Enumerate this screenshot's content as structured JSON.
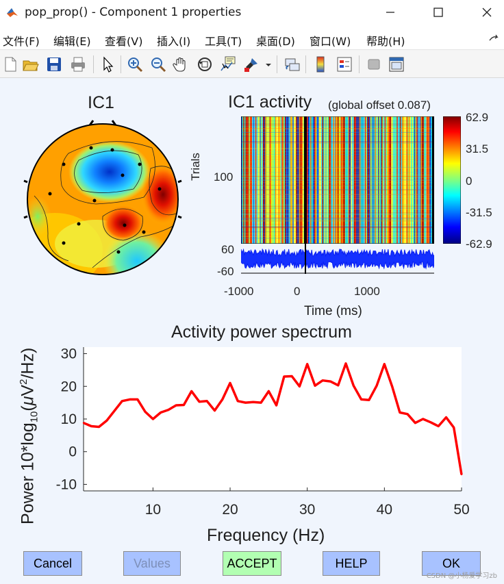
{
  "window": {
    "title": "pop_prop() - Component 1 properties",
    "minimize_glyph": "—",
    "maximize_glyph": "☐",
    "close_glyph": "✕"
  },
  "menu": {
    "items": [
      {
        "label": "文件(F)"
      },
      {
        "label": "编辑(E)"
      },
      {
        "label": "查看(V)"
      },
      {
        "label": "插入(I)"
      },
      {
        "label": "工具(T)"
      },
      {
        "label": "桌面(D)"
      },
      {
        "label": "窗口(W)"
      },
      {
        "label": "帮助(H)"
      }
    ]
  },
  "toolbar": {
    "icons": [
      "new-figure-icon",
      "open-icon",
      "save-icon",
      "print-icon",
      "pointer-icon",
      "zoom-in-icon",
      "zoom-out-icon",
      "pan-icon",
      "rotate-3d-icon",
      "data-cursor-icon",
      "brush-icon",
      "brush-dropdown-icon",
      "link-plot-icon",
      "colorbar-icon",
      "legend-icon",
      "hide-plot-tools-icon",
      "show-plot-tools-icon"
    ]
  },
  "scalp_map": {
    "title": "IC1"
  },
  "erp_image": {
    "title": "IC1 activity",
    "subtitle": "(global offset 0.087)",
    "ylabel": "Trials",
    "ytick_trials": "100",
    "erp_ytick_top": "60",
    "erp_ytick_bottom": "-60",
    "xticks": [
      "-1000",
      "0",
      "1000"
    ],
    "xlabel": "Time (ms)",
    "colorbar_ticks": [
      "62.9",
      "31.5",
      "0",
      "-31.5",
      "-62.9"
    ]
  },
  "chart_data": {
    "type": "line",
    "title": "Activity power spectrum",
    "xlabel": "Frequency (Hz)",
    "ylabel_prefix": "Power 10*log",
    "ylabel_sub": "10",
    "ylabel_open": "(",
    "ylabel_mu": "μ",
    "ylabel_v": "V",
    "ylabel_sup": "2",
    "ylabel_rest": "/Hz)",
    "xlim": [
      1,
      50
    ],
    "ylim": [
      -12,
      32
    ],
    "xticks": [
      10,
      20,
      30,
      40,
      50
    ],
    "yticks": [
      -10,
      0,
      10,
      20,
      30
    ],
    "line_color": "#ff0000",
    "x": [
      1,
      2,
      3,
      4,
      5,
      6,
      7,
      8,
      9,
      10,
      11,
      12,
      13,
      14,
      15,
      16,
      17,
      18,
      19,
      20,
      21,
      22,
      23,
      24,
      25,
      26,
      27,
      28,
      29,
      30,
      31,
      32,
      33,
      34,
      35,
      36,
      37,
      38,
      39,
      40,
      41,
      42,
      43,
      44,
      45,
      46,
      47,
      48,
      49,
      50
    ],
    "values": [
      8.8,
      7.8,
      7.6,
      9.5,
      12.5,
      15.5,
      16.0,
      16.0,
      12.2,
      10.0,
      12.0,
      12.8,
      14.2,
      14.3,
      18.5,
      15.3,
      15.5,
      12.6,
      16.0,
      21.0,
      15.5,
      15.0,
      15.2,
      15.0,
      18.5,
      14.2,
      23.0,
      23.1,
      20.0,
      26.8,
      20.2,
      21.8,
      21.5,
      20.3,
      27.0,
      20.2,
      16.0,
      15.8,
      20.2,
      26.8,
      20.0,
      12.0,
      11.5,
      8.8,
      10.0,
      9.0,
      7.8,
      10.5,
      7.4,
      -7.0
    ]
  },
  "buttons": {
    "cancel": "Cancel",
    "values": "Values",
    "accept": "ACCEPT",
    "help": "HELP",
    "ok": "OK"
  },
  "watermark": "CSDN @小杨爱学习zb"
}
